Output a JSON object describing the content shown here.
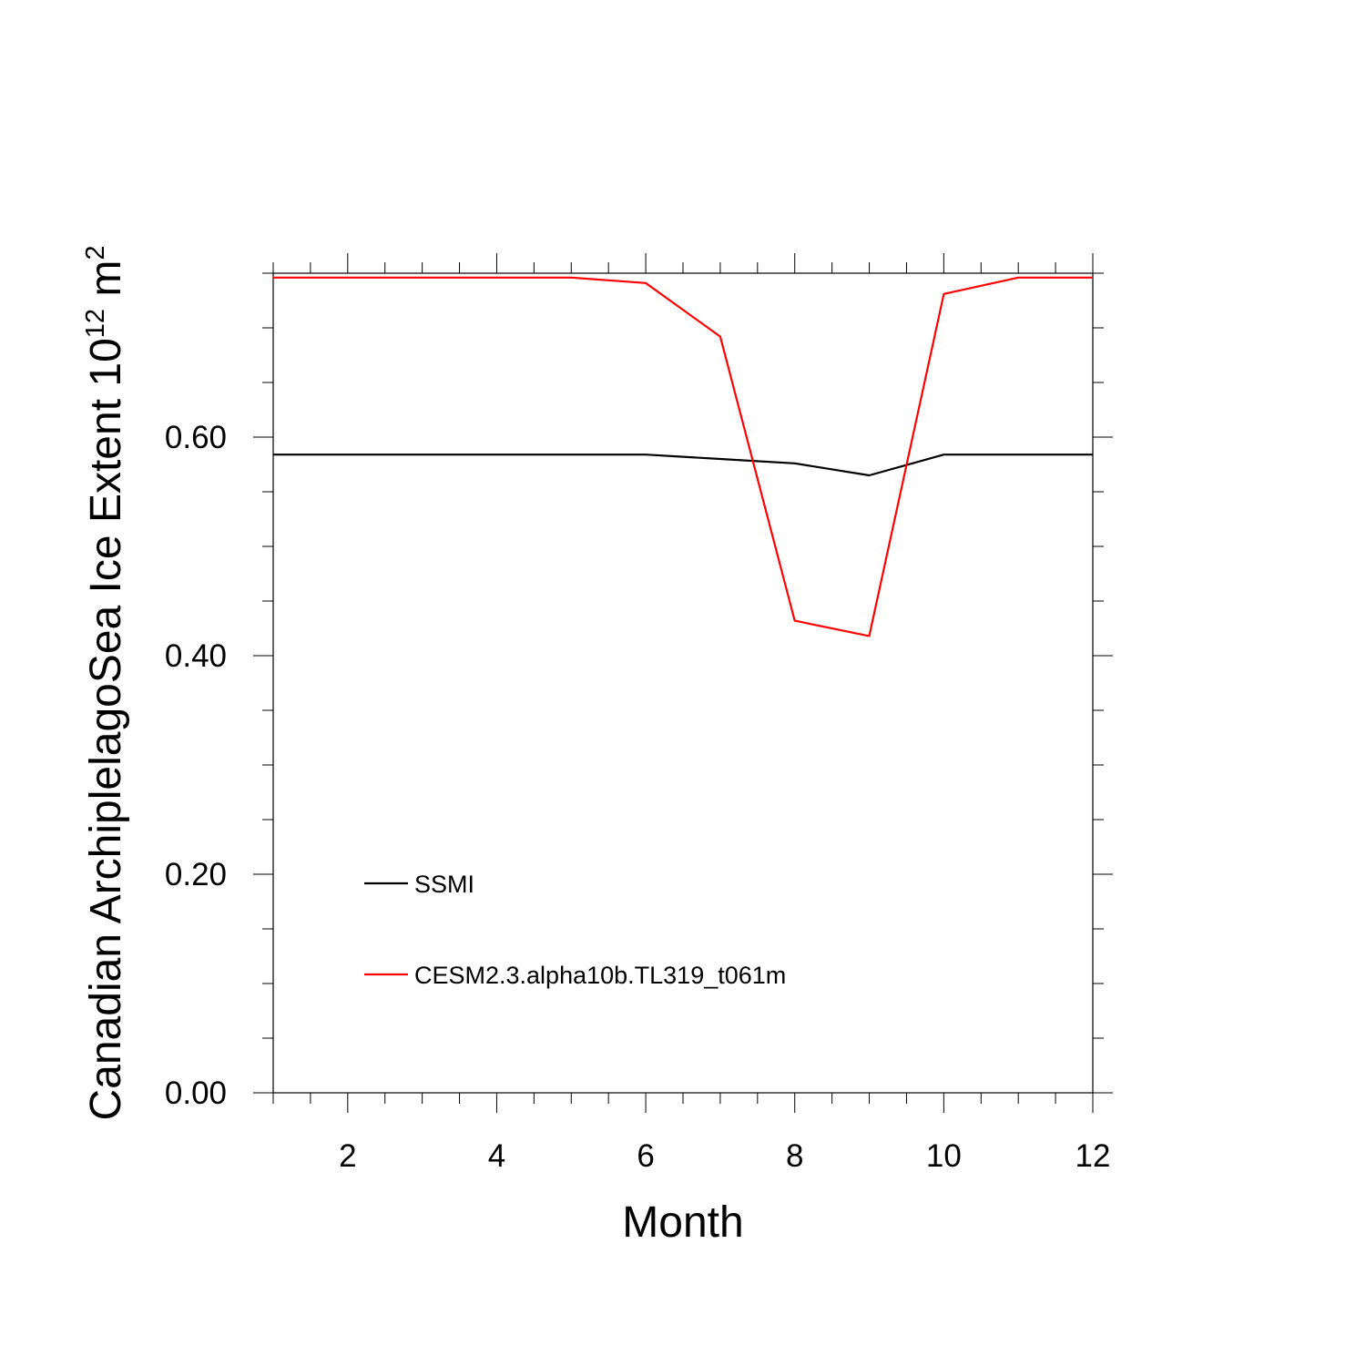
{
  "chart_data": {
    "type": "line",
    "title": "",
    "xlabel": "Month",
    "ylabel": {
      "base": "Canadian ArchiplelagoSea Ice Extent 10",
      "sup1": "12",
      "mid": " m",
      "sup2": "2"
    },
    "xlim": [
      1,
      12
    ],
    "ylim": [
      0,
      0.75
    ],
    "x_major_ticks": [
      2,
      4,
      6,
      8,
      10,
      12
    ],
    "x_tick_labels": [
      "2",
      "4",
      "6",
      "8",
      "10",
      "12"
    ],
    "y_major_ticks": [
      0.0,
      0.2,
      0.4,
      0.6
    ],
    "y_tick_labels": [
      "0.00",
      "0.20",
      "0.40",
      "0.60"
    ],
    "grid": false,
    "legend_position": "lower-left",
    "x": [
      1,
      2,
      3,
      4,
      5,
      6,
      7,
      8,
      9,
      10,
      11,
      12
    ],
    "series": [
      {
        "name": "SSMI",
        "color": "#000000",
        "values": [
          0.584,
          0.584,
          0.584,
          0.584,
          0.584,
          0.584,
          0.58,
          0.576,
          0.565,
          0.584,
          0.584,
          0.584
        ]
      },
      {
        "name": "CESM2.3.alpha10b.TL319_t061m",
        "color": "#ff0000",
        "values": [
          0.746,
          0.746,
          0.746,
          0.746,
          0.746,
          0.741,
          0.692,
          0.432,
          0.418,
          0.731,
          0.746,
          0.746
        ]
      }
    ]
  }
}
